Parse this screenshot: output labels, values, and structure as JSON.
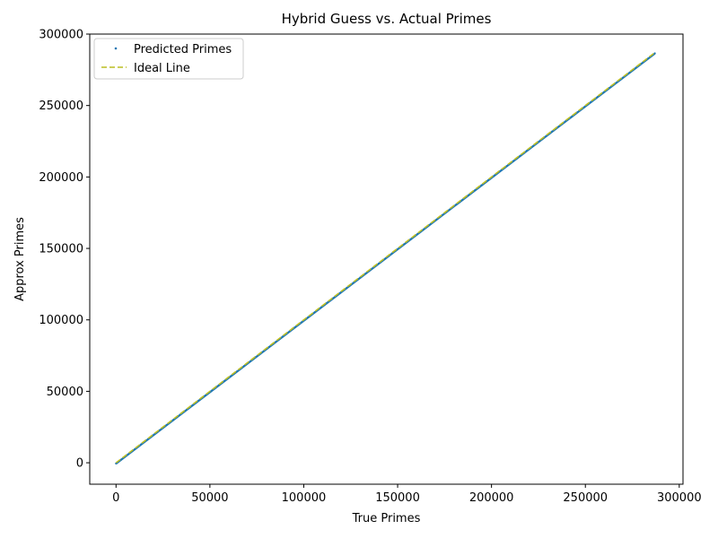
{
  "chart_data": {
    "type": "scatter",
    "title": "Hybrid Guess vs. Actual Primes",
    "xlabel": "True Primes",
    "ylabel": "Approx Primes",
    "xlim": [
      -14000,
      302000
    ],
    "ylim": [
      -15000,
      300000
    ],
    "xticks": [
      0,
      50000,
      100000,
      150000,
      200000,
      250000,
      300000
    ],
    "yticks": [
      0,
      50000,
      100000,
      150000,
      200000,
      250000,
      300000
    ],
    "grid": false,
    "legend_position": "top-left",
    "series": [
      {
        "name": "Predicted Primes",
        "kind": "scatter",
        "color": "#1f77b4",
        "x_range": [
          0,
          287000
        ],
        "y_range": [
          0,
          287000
        ]
      },
      {
        "name": "Ideal Line",
        "kind": "dashed-line",
        "color": "#bcbd22",
        "x": [
          0,
          287000
        ],
        "y": [
          0,
          287000
        ]
      }
    ]
  }
}
